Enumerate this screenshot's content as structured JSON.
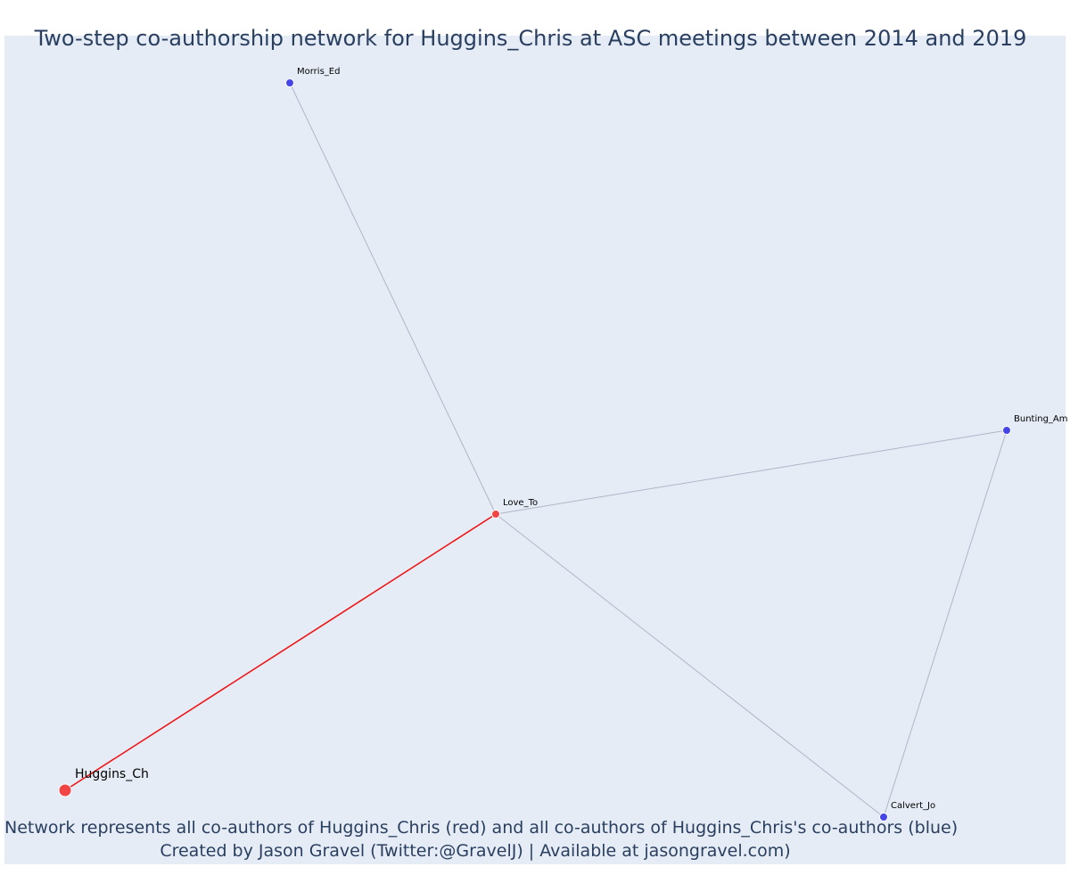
{
  "title": "Two-step co-authorship network for Huggins_Chris at ASC meetings between 2014 and 2019",
  "colors": {
    "plot_background": "#e5ecf6",
    "ego": "#f24445",
    "coauthor_first_step": "#f24445",
    "coauthor_second_step": "#4545e8",
    "ego_edge": "#ee1111",
    "other_edge": "#b4b4c8",
    "text": "#2a3f5f"
  },
  "nodes": [
    {
      "id": "huggins",
      "label": "Huggins_Ch",
      "role": "ego"
    },
    {
      "id": "love",
      "label": "Love_To",
      "role": "first-step"
    },
    {
      "id": "morris",
      "label": "Morris_Ed",
      "role": "second-step"
    },
    {
      "id": "bunting",
      "label": "Bunting_Am",
      "role": "second-step"
    },
    {
      "id": "calvert",
      "label": "Calvert_Jo",
      "role": "second-step"
    }
  ],
  "edges": [
    {
      "source": "huggins",
      "target": "love",
      "type": "ego"
    },
    {
      "source": "love",
      "target": "morris",
      "type": "other"
    },
    {
      "source": "love",
      "target": "bunting",
      "type": "other"
    },
    {
      "source": "love",
      "target": "calvert",
      "type": "other"
    },
    {
      "source": "bunting",
      "target": "calvert",
      "type": "other"
    }
  ],
  "caption": {
    "line1": "Network represents all co-authors of Huggins_Chris (red) and all co-authors of Huggins_Chris's co-authors (blue)",
    "line2": "Created by Jason Gravel (Twitter:@GravelJ) | Available at jasongravel.com)"
  }
}
